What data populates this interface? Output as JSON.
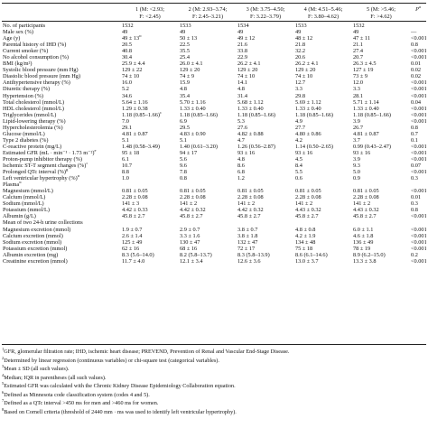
{
  "table": {
    "columns": [
      {
        "label": "",
        "p": ""
      },
      {
        "label": "1 (M: <2.93;",
        "sub": "F: <2.45)"
      },
      {
        "label": "2 (M: 2.93–3.74;",
        "sub": "F: 2.45–3.21)"
      },
      {
        "label": "3 (M: 3.75–4.50;",
        "sub": "F: 3.22–3.79)"
      },
      {
        "label": "4 (M: 4.51–5.46;",
        "sub": "F: 3.80–4.62)"
      },
      {
        "label": "5 (M: >5.46;",
        "sub": "F: >4.62)"
      },
      {
        "label": "P",
        "sup": "a",
        "sub": ""
      }
    ],
    "rows": [
      {
        "label": "No. of participants",
        "v": [
          "1532",
          "1533",
          "1534",
          "1533",
          "1532",
          ""
        ]
      },
      {
        "label": "Male sex (%)",
        "v": [
          "49",
          "49",
          "49",
          "49",
          "49",
          "—"
        ]
      },
      {
        "label": "Age (y)",
        "v": [
          "49 ± 13",
          "50 ± 13",
          "49 ± 12",
          "48 ± 12",
          "47 ± 11",
          "<0.001"
        ],
        "sup": "b"
      },
      {
        "label": "Parental history of IHD (%)",
        "v": [
          "20.5",
          "22.5",
          "21.6",
          "21.8",
          "21.1",
          "0.8"
        ]
      },
      {
        "label": "Current smoker (%)",
        "v": [
          "40.8",
          "35.5",
          "33.8",
          "32.2",
          "27.4",
          "<0.001"
        ]
      },
      {
        "label": "No alcohol consumption (%)",
        "v": [
          "30.4",
          "25.4",
          "22.9",
          "20.6",
          "20.7",
          "<0.001"
        ]
      },
      {
        "label": "BMI (kg/m²)",
        "v": [
          "25.9 ± 4.4",
          "26.0 ± 4.1",
          "26.2 ± 4.1",
          "26.2 ± 4.1",
          "26.3 ± 4.5",
          "0.01"
        ]
      },
      {
        "label": "Systolic blood pressure (mm Hg)",
        "v": [
          "129 ± 22",
          "129 ± 20",
          "129 ± 20",
          "129 ± 20",
          "127 ± 19",
          "0.02"
        ]
      },
      {
        "label": "Diastolic blood pressure (mm Hg)",
        "v": [
          "74 ± 10",
          "74 ± 9",
          "74 ± 10",
          "74 ± 10",
          "73 ± 9",
          "0.02"
        ]
      },
      {
        "label": "Antihypertensive therapy (%)",
        "v": [
          "16.0",
          "15.9",
          "14.1",
          "12.7",
          "12.0",
          "<0.001"
        ]
      },
      {
        "label": "Diuretic therapy (%)",
        "v": [
          "5.2",
          "4.8",
          "4.8",
          "3.3",
          "3.3",
          "<0.001"
        ]
      },
      {
        "label": "Hypertension (%)",
        "v": [
          "34.6",
          "35.4",
          "31.4",
          "29.8",
          "28.1",
          "<0.001"
        ]
      },
      {
        "label": "Total cholesterol (mmol/L)",
        "v": [
          "5.64 ± 1.16",
          "5.70 ± 1.16",
          "5.68 ± 1.12",
          "5.69 ± 1.12",
          "5.71 ± 1.14",
          "0.04"
        ]
      },
      {
        "label": "HDL cholesterol (mmol/L)",
        "v": [
          "1.29 ± 0.38",
          "1.33 ± 0.40",
          "1.33 ± 0.40",
          "1.33 ± 0.40",
          "1.33 ± 0.40",
          "<0.001"
        ]
      },
      {
        "label": "Triglycerides (mmol/L)",
        "v": [
          "1.18 (0.85–1.66)",
          "1.18 (0.85–1.66)",
          "1.18 (0.85–1.66)",
          "1.18 (0.85–1.66)",
          "1.18 (0.85–1.66)",
          "<0.001"
        ],
        "sup0": "c"
      },
      {
        "label": "Lipid-lowering therapy (%)",
        "v": [
          "7.0",
          "6.9",
          "5.3",
          "4.9",
          "3.9",
          "<0.001"
        ]
      },
      {
        "label": "Hypercholesterolemia (%)",
        "v": [
          "29.1",
          "29.5",
          "27.6",
          "27.7",
          "26.7",
          "0.8"
        ]
      },
      {
        "label": "Glucose (mmol/L)",
        "v": [
          "4.81 ± 0.87",
          "4.83 ± 0.90",
          "4.82 ± 0.88",
          "4.80 ± 0.86",
          "4.81 ± 0.87",
          "0.7"
        ]
      },
      {
        "label": "Type 2 diabetes (%)",
        "v": [
          "5.1",
          "5.1",
          "4.7",
          "4.2",
          "3.7",
          "0.1"
        ]
      },
      {
        "label": "C-reactive protein (mg/L)",
        "v": [
          "1.48 (0.58–3.49)",
          "1.40 (0.61–3.20)",
          "1.26 (0.56–2.87)",
          "1.14 (0.50–2.65)",
          "0.99 (0.43–2.47)",
          "<0.001"
        ]
      },
      {
        "label": "Estimated GFR (mL · min⁻¹ · 1.73 m⁻²)",
        "v": [
          "95 ± 18",
          "94 ± 17",
          "93 ± 16",
          "93 ± 16",
          "93 ± 16",
          "<0.001"
        ],
        "labsup": "e"
      },
      {
        "label": "Proton-pump inhibitor therapy (%)",
        "v": [
          "6.1",
          "5.6",
          "4.8",
          "4.5",
          "3.9",
          "<0.001"
        ]
      },
      {
        "label": "Ischemic ST-T segment changes (%)",
        "v": [
          "10.7",
          "9.6",
          "8.6",
          "8.4",
          "9.3",
          "0.07"
        ],
        "labsup": "f"
      },
      {
        "label": "Prolonged QTc interval (%)",
        "v": [
          "8.8",
          "7.8",
          "6.8",
          "5.5",
          "5.0",
          "<0.001"
        ],
        "labsup": "g"
      },
      {
        "label": "Left ventricular hypertrophy (%)",
        "v": [
          "1.0",
          "0.8",
          "1.2",
          "0.6",
          "0.9",
          "0.3"
        ],
        "labsup": "h"
      }
    ],
    "plasma_title": "Plasma",
    "plasma_sup": "d",
    "plasma_rows": [
      {
        "label": "Magnesium (mmol/L)",
        "v": [
          "0.81 ± 0.05",
          "0.81 ± 0.05",
          "0.81 ± 0.05",
          "0.81 ± 0.05",
          "0.81 ± 0.05",
          "<0.001"
        ]
      },
      {
        "label": "Calcium (mmol/L)",
        "v": [
          "2.28 ± 0.08",
          "2.28 ± 0.08",
          "2.28 ± 0.08",
          "2.28 ± 0.08",
          "2.28 ± 0.08",
          "0.01"
        ]
      },
      {
        "label": "Sodium (mmol/L)",
        "v": [
          "141 ± 3",
          "141 ± 2",
          "141 ± 2",
          "141 ± 2",
          "141 ± 2",
          "0.3"
        ]
      },
      {
        "label": "Potassium (mmol/L)",
        "v": [
          "4.42 ± 0.33",
          "4.42 ± 0.32",
          "4.42 ± 0.32",
          "4.43 ± 0.32",
          "4.43 ± 0.32",
          "0.8"
        ]
      },
      {
        "label": "Albumin (g/L)",
        "v": [
          "45.8 ± 2.7",
          "45.8 ± 2.7",
          "45.8 ± 2.7",
          "45.8 ± 2.7",
          "45.8 ± 2.7",
          "<0.001"
        ]
      }
    ],
    "urine_title": "Mean of two 24-h urine collections",
    "urine_rows": [
      {
        "label": "Magnesium excretion (mmol)",
        "v": [
          "1.9 ± 0.7",
          "2.9 ± 0.7",
          "3.8 ± 0.7",
          "4.8 ± 0.8",
          "6.0 ± 1.1",
          "<0.001"
        ]
      },
      {
        "label": "Calcium excretion (mmol)",
        "v": [
          "2.6 ± 1.4",
          "3.3 ± 1.6",
          "3.8 ± 1.8",
          "4.2 ± 1.9",
          "4.6 ± 1.8",
          "<0.001"
        ]
      },
      {
        "label": "Sodium excretion (mmol)",
        "v": [
          "125 ± 49",
          "130 ± 47",
          "132 ± 47",
          "134 ± 48",
          "136 ± 49",
          "<0.001"
        ]
      },
      {
        "label": "Potassium excretion (mmol)",
        "v": [
          "62 ± 16",
          "68 ± 16",
          "72 ± 17",
          "75 ± 18",
          "78 ± 19",
          "<0.001"
        ]
      },
      {
        "label": "Albumin excretion (mg)",
        "v": [
          "8.3 (5.6–14.0)",
          "8.2 (5.8–13.7)",
          "8.3 (5.8–13.9)",
          "8.6 (6.1–14.6)",
          "8.9 (6.2–15.0)",
          "0.2"
        ]
      },
      {
        "label": "Creatinine excretion (mmol)",
        "v": [
          "11.7 ± 4.0",
          "12.1 ± 3.4",
          "12.6 ± 3.6",
          "13.0 ± 3.7",
          "13.3 ± 3.8",
          "<0.001"
        ]
      }
    ]
  },
  "footnotes": [
    {
      "sup": "1",
      "text": "GFR, glomerular filtration rate; IHD, ischemic heart disease; PREVEND, Prevention of Renal and Vascular End-Stage Disease."
    },
    {
      "sup": "2",
      "text": "Determined by linear regression (continuous variables) or chi-square test (categorical variables)."
    },
    {
      "sup": "3",
      "text": "Mean ± SD (all such values)."
    },
    {
      "sup": "4",
      "text": "Median; IQR in parentheses (all such values)."
    },
    {
      "sup": "5",
      "text": "Estimated GFR was calculated with the Chronic Kidney Disease Epidemiology Collaboration equation."
    },
    {
      "sup": "6",
      "text": "Defined as Minnesota code classification system (codes 4 and 5)."
    },
    {
      "sup": "7",
      "text": "Defined as a QTc interval >450 ms for men and >460 ms for women."
    },
    {
      "sup": "8",
      "text": "Based on Cornell criteria (threshold of 2440 mm · ms was used to identify left ventricular hypertrophy)."
    }
  ]
}
